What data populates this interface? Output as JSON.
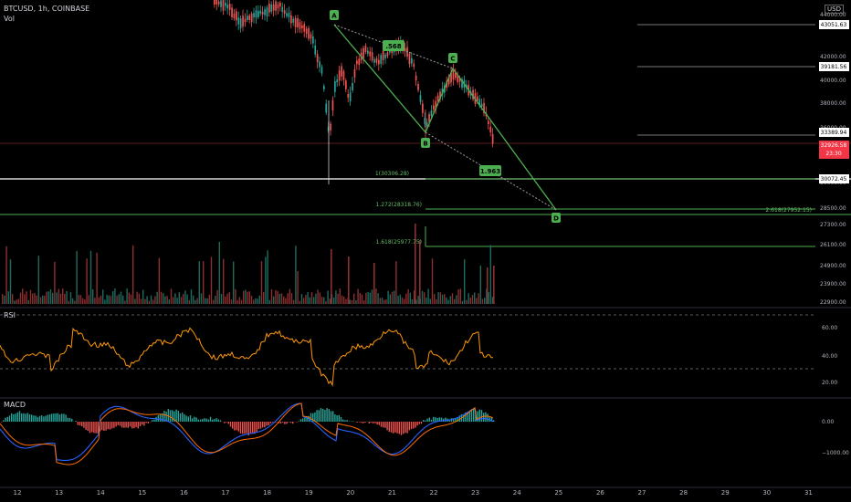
{
  "header": {
    "symbol": "BTCUSD, 1h, COINBASE",
    "volume_label": "Vol",
    "currency": "USD"
  },
  "chart_data": {
    "type": "candlestick",
    "price_axis": {
      "ticks": [
        "44000.00",
        "42000.00",
        "40000.00",
        "38000.00",
        "36000.00",
        "34000.00",
        "30000.00",
        "28500.00",
        "27300.00",
        "26100.00",
        "24900.00",
        "23900.00",
        "22900.00"
      ]
    },
    "price_badges": [
      {
        "value": "43051.63",
        "style": "white"
      },
      {
        "value": "39181.56",
        "style": "white"
      },
      {
        "value": "33389.94",
        "style": "white"
      },
      {
        "value": "32926.58",
        "sub": "23:30",
        "style": "red"
      },
      {
        "value": "30072.45",
        "style": "white"
      }
    ],
    "x_axis": {
      "ticks": [
        "12",
        "13",
        "14",
        "15",
        "16",
        "17",
        "18",
        "19",
        "20",
        "21",
        "22",
        "23",
        "24",
        "25",
        "26",
        "27",
        "28",
        "29",
        "30",
        "31"
      ]
    },
    "harmonic_pattern": {
      "points": [
        "A",
        "B",
        "C",
        "D"
      ],
      "ratios": [
        ".568",
        "1.963"
      ],
      "fib_levels": [
        "1(30306.28)",
        "1.272(28318.76)",
        "1.618(25977.75)",
        "2.618(27952.15)"
      ]
    },
    "rsi": {
      "label": "RSI",
      "ticks": [
        "60.00",
        "40.00",
        "20.00"
      ]
    },
    "macd": {
      "label": "MACD",
      "ticks": [
        "0.00",
        "−1000.00"
      ]
    },
    "colors": {
      "up": "#26a69a",
      "down": "#ef5350",
      "pattern": "#4caf50",
      "rsi": "#ff9800",
      "macd": "#2962ff",
      "signal": "#ff6d00"
    }
  }
}
